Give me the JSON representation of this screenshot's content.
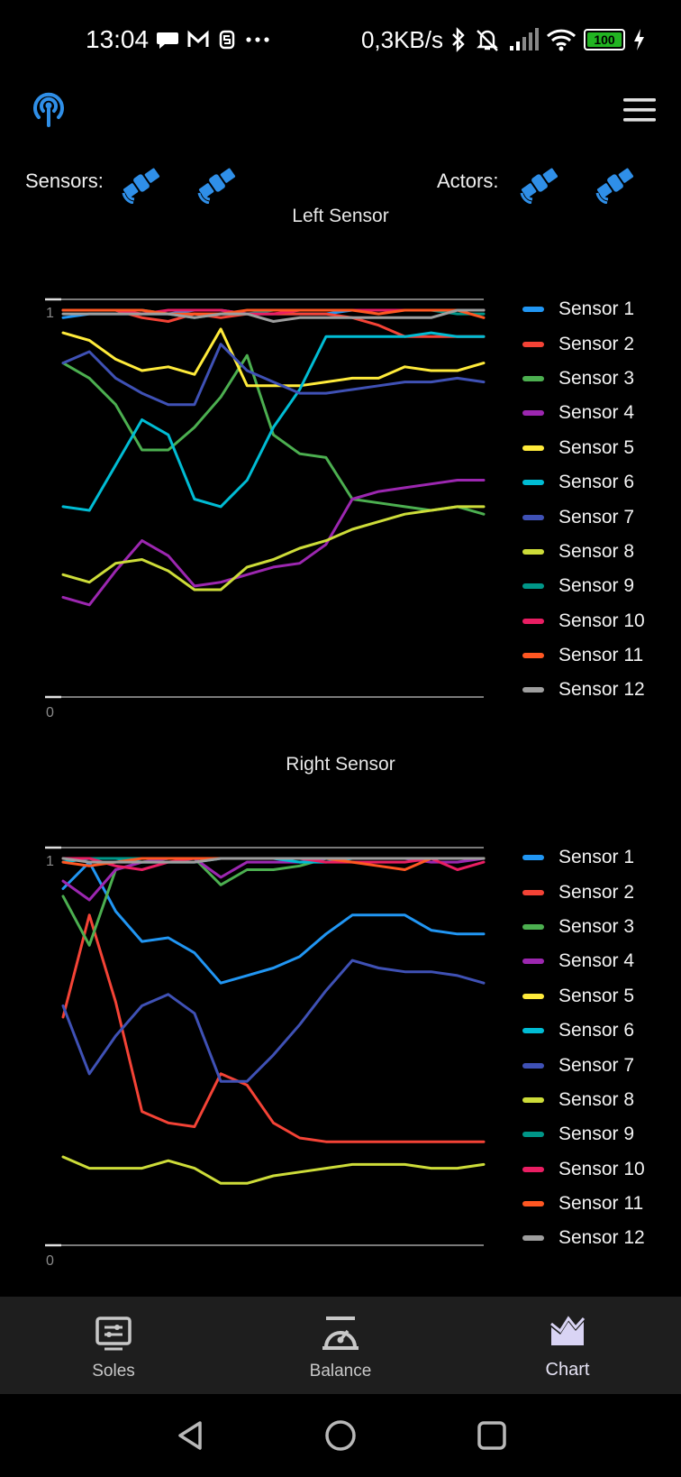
{
  "status_bar": {
    "time": "13:04",
    "net_speed": "0,3KB/s",
    "battery": "100"
  },
  "topbar": {
    "left_icon": "antenna-icon",
    "right_icon": "hamburger-menu-icon"
  },
  "connections": {
    "sensors_label": "Sensors:",
    "actors_label": "Actors:",
    "icon": "satellite-icon"
  },
  "colors": {
    "accent": "#2f8fe8",
    "background": "#000000",
    "nav_background": "#1e1e1e",
    "active_nav_icon": "#d9d4f4",
    "inactive_nav_icon": "#c8c8c8"
  },
  "bottom_nav": [
    {
      "label": "Soles",
      "icon": "soles-icon"
    },
    {
      "label": "Balance",
      "icon": "balance-icon"
    },
    {
      "label": "Chart",
      "icon": "chart-icon",
      "active": true
    }
  ],
  "system_nav": [
    "back-icon",
    "home-icon",
    "recents-icon"
  ],
  "chart_data": [
    {
      "type": "line",
      "title": "Left Sensor",
      "legend_placement": "right",
      "ylim": [
        0,
        1.05
      ],
      "ytick_labels": [
        "1",
        "0"
      ],
      "x": [
        0,
        1,
        2,
        3,
        4,
        5,
        6,
        7,
        8,
        9,
        10,
        11,
        12,
        13,
        14,
        15,
        16
      ],
      "series": [
        {
          "name": "Sensor 1",
          "color": "#2196f3",
          "values": [
            0.98,
            0.99,
            0.99,
            0.99,
            0.99,
            1.0,
            1.0,
            0.99,
            0.99,
            0.99,
            0.99,
            1.0,
            1.0,
            1.0,
            1.0,
            1.0,
            1.0
          ]
        },
        {
          "name": "Sensor 2",
          "color": "#f44336",
          "values": [
            1.0,
            1.0,
            1.0,
            0.98,
            0.97,
            0.99,
            0.98,
            0.99,
            0.99,
            0.99,
            0.99,
            0.98,
            0.96,
            0.93,
            0.93,
            0.93,
            0.93
          ]
        },
        {
          "name": "Sensor 3",
          "color": "#4caf50",
          "values": [
            0.86,
            0.82,
            0.75,
            0.63,
            0.63,
            0.69,
            0.77,
            0.88,
            0.67,
            0.62,
            0.61,
            0.5,
            0.49,
            0.48,
            0.47,
            0.48,
            0.46
          ]
        },
        {
          "name": "Sensor 4",
          "color": "#9c27b0",
          "values": [
            0.24,
            0.22,
            0.31,
            0.39,
            0.35,
            0.27,
            0.28,
            0.3,
            0.32,
            0.33,
            0.38,
            0.5,
            0.52,
            0.53,
            0.54,
            0.55,
            0.55
          ]
        },
        {
          "name": "Sensor 5",
          "color": "#ffeb3b",
          "values": [
            0.94,
            0.92,
            0.87,
            0.84,
            0.85,
            0.83,
            0.95,
            0.8,
            0.8,
            0.8,
            0.81,
            0.82,
            0.82,
            0.85,
            0.84,
            0.84,
            0.86
          ]
        },
        {
          "name": "Sensor 6",
          "color": "#00bcd4",
          "values": [
            0.48,
            0.47,
            0.59,
            0.71,
            0.67,
            0.5,
            0.48,
            0.55,
            0.69,
            0.79,
            0.93,
            0.93,
            0.93,
            0.93,
            0.94,
            0.93,
            0.93
          ]
        },
        {
          "name": "Sensor 7",
          "color": "#3f51b5",
          "values": [
            0.86,
            0.89,
            0.82,
            0.78,
            0.75,
            0.75,
            0.91,
            0.84,
            0.81,
            0.78,
            0.78,
            0.79,
            0.8,
            0.81,
            0.81,
            0.82,
            0.81
          ]
        },
        {
          "name": "Sensor 8",
          "color": "#cddc39",
          "values": [
            0.3,
            0.28,
            0.33,
            0.34,
            0.31,
            0.26,
            0.26,
            0.32,
            0.34,
            0.37,
            0.39,
            0.42,
            0.44,
            0.46,
            0.47,
            0.48,
            0.48
          ]
        },
        {
          "name": "Sensor 9",
          "color": "#009688",
          "values": [
            1.0,
            1.0,
            1.0,
            1.0,
            0.99,
            0.98,
            0.99,
            0.99,
            1.0,
            1.0,
            1.0,
            1.0,
            1.0,
            1.0,
            1.0,
            0.99,
            0.99
          ]
        },
        {
          "name": "Sensor 10",
          "color": "#e91e63",
          "values": [
            1.0,
            1.0,
            1.0,
            0.99,
            1.0,
            1.0,
            1.0,
            0.99,
            0.99,
            1.0,
            1.0,
            1.0,
            1.0,
            1.0,
            1.0,
            1.0,
            1.0
          ]
        },
        {
          "name": "Sensor 11",
          "color": "#ff5722",
          "values": [
            1.0,
            1.0,
            1.0,
            1.0,
            0.99,
            0.99,
            0.99,
            1.0,
            1.0,
            1.0,
            1.0,
            1.0,
            0.99,
            1.0,
            1.0,
            1.0,
            0.98
          ]
        },
        {
          "name": "Sensor 12",
          "color": "#9e9e9e",
          "values": [
            0.99,
            0.99,
            0.99,
            0.99,
            0.99,
            0.98,
            0.99,
            0.99,
            0.97,
            0.98,
            0.98,
            0.98,
            0.98,
            0.98,
            0.98,
            1.0,
            1.0
          ]
        }
      ]
    },
    {
      "type": "line",
      "title": "Right Sensor",
      "legend_placement": "right",
      "ylim": [
        0,
        1.05
      ],
      "ytick_labels": [
        "1",
        "0"
      ],
      "x": [
        0,
        1,
        2,
        3,
        4,
        5,
        6,
        7,
        8,
        9,
        10,
        11,
        12,
        13,
        14,
        15,
        16
      ],
      "series": [
        {
          "name": "Sensor 1",
          "color": "#2196f3",
          "values": [
            0.92,
            0.99,
            0.86,
            0.78,
            0.79,
            0.75,
            0.67,
            0.69,
            0.71,
            0.74,
            0.8,
            0.85,
            0.85,
            0.85,
            0.81,
            0.8,
            0.8
          ]
        },
        {
          "name": "Sensor 2",
          "color": "#f44336",
          "values": [
            0.58,
            0.85,
            0.62,
            0.33,
            0.3,
            0.29,
            0.43,
            0.4,
            0.3,
            0.26,
            0.25,
            0.25,
            0.25,
            0.25,
            0.25,
            0.25,
            0.25
          ]
        },
        {
          "name": "Sensor 3",
          "color": "#4caf50",
          "values": [
            0.9,
            0.77,
            0.97,
            0.99,
            1.0,
            1.0,
            0.93,
            0.97,
            0.97,
            0.98,
            1.0,
            1.0,
            1.0,
            1.0,
            1.0,
            1.0,
            1.0
          ]
        },
        {
          "name": "Sensor 4",
          "color": "#9c27b0",
          "values": [
            0.94,
            0.89,
            0.97,
            0.99,
            1.0,
            1.0,
            0.95,
            0.99,
            0.99,
            0.99,
            1.0,
            1.0,
            1.0,
            1.0,
            0.99,
            0.99,
            1.0
          ]
        },
        {
          "name": "Sensor 5",
          "color": "#ffeb3b",
          "values": [
            1.0,
            1.0,
            1.0,
            1.0,
            1.0,
            1.0,
            1.0,
            1.0,
            1.0,
            1.0,
            1.0,
            1.0,
            1.0,
            1.0,
            1.0,
            1.0,
            1.0
          ]
        },
        {
          "name": "Sensor 6",
          "color": "#00bcd4",
          "values": [
            0.99,
            1.0,
            1.0,
            0.99,
            0.99,
            0.99,
            1.0,
            1.0,
            1.0,
            0.99,
            0.99,
            1.0,
            1.0,
            1.0,
            1.0,
            1.0,
            1.0
          ]
        },
        {
          "name": "Sensor 7",
          "color": "#3f51b5",
          "values": [
            0.61,
            0.43,
            0.53,
            0.61,
            0.64,
            0.59,
            0.41,
            0.41,
            0.48,
            0.56,
            0.65,
            0.73,
            0.71,
            0.7,
            0.7,
            0.69,
            0.67
          ]
        },
        {
          "name": "Sensor 8",
          "color": "#cddc39",
          "values": [
            0.21,
            0.18,
            0.18,
            0.18,
            0.2,
            0.18,
            0.14,
            0.14,
            0.16,
            0.17,
            0.18,
            0.19,
            0.19,
            0.19,
            0.18,
            0.18,
            0.19
          ]
        },
        {
          "name": "Sensor 9",
          "color": "#009688",
          "values": [
            1.0,
            1.0,
            1.0,
            1.0,
            1.0,
            1.0,
            1.0,
            1.0,
            1.0,
            1.0,
            1.0,
            1.0,
            1.0,
            1.0,
            1.0,
            1.0,
            1.0
          ]
        },
        {
          "name": "Sensor 10",
          "color": "#e91e63",
          "values": [
            1.0,
            1.0,
            0.98,
            0.97,
            0.99,
            1.0,
            1.0,
            1.0,
            1.0,
            1.0,
            0.99,
            0.99,
            0.99,
            0.99,
            1.0,
            0.97,
            0.99
          ]
        },
        {
          "name": "Sensor 11",
          "color": "#ff5722",
          "values": [
            0.99,
            0.98,
            0.99,
            1.0,
            1.0,
            1.0,
            1.0,
            1.0,
            1.0,
            1.0,
            1.0,
            0.99,
            0.98,
            0.97,
            1.0,
            1.0,
            1.0
          ]
        },
        {
          "name": "Sensor 12",
          "color": "#9e9e9e",
          "values": [
            1.0,
            0.99,
            0.99,
            0.99,
            0.99,
            0.99,
            1.0,
            1.0,
            1.0,
            1.0,
            1.0,
            1.0,
            1.0,
            1.0,
            1.0,
            1.0,
            1.0
          ]
        }
      ]
    }
  ]
}
